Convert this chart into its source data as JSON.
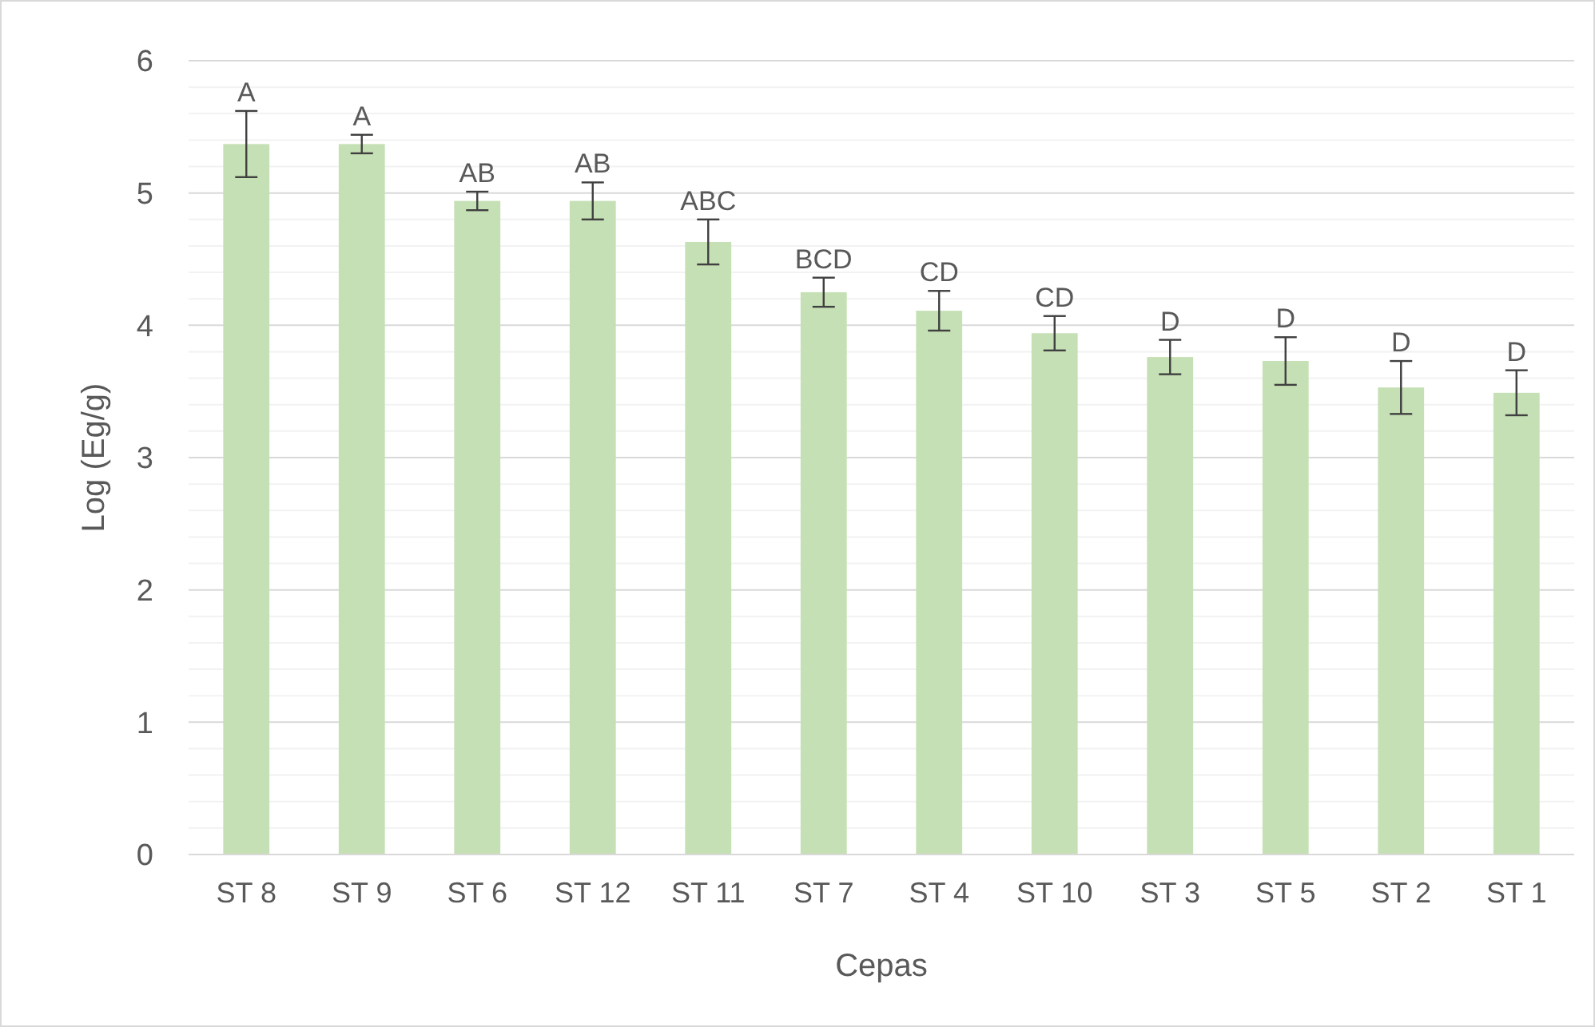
{
  "chart_data": {
    "type": "bar",
    "xlabel": "Cepas",
    "ylabel": "Log (Eg/g)",
    "categories": [
      "ST 8",
      "ST 9",
      "ST 6",
      "ST 12",
      "ST 11",
      "ST 7",
      "ST 4",
      "ST 10",
      "ST 3",
      "ST 5",
      "ST 2",
      "ST 1"
    ],
    "values": [
      5.37,
      5.37,
      4.94,
      4.94,
      4.63,
      4.25,
      4.11,
      3.94,
      3.76,
      3.73,
      3.53,
      3.49
    ],
    "errors": [
      0.25,
      0.07,
      0.07,
      0.14,
      0.17,
      0.11,
      0.15,
      0.13,
      0.13,
      0.18,
      0.2,
      0.17
    ],
    "color": "#c5e0b4",
    "ylim": [
      0,
      6
    ],
    "yticks": [
      0,
      {
        "value": 0.2,
        "label": null
      },
      {
        "value": 0.4,
        "label": null
      },
      {
        "value": 0.6,
        "label": null
      },
      {
        "value": 0.8,
        "label": null
      },
      1,
      {
        "value": 1.2,
        "label": null
      },
      {
        "value": 1.4,
        "label": null
      },
      {
        "value": 1.6,
        "label": null
      },
      {
        "value": 1.8,
        "label": null
      },
      2,
      {
        "value": 2.2,
        "label": null
      },
      {
        "value": 2.4,
        "label": null
      },
      {
        "value": 2.6,
        "label": null
      },
      {
        "value": 2.8,
        "label": null
      },
      3,
      {
        "value": 3.2,
        "label": null
      },
      {
        "value": 3.4,
        "label": null
      },
      {
        "value": 3.6,
        "label": null
      },
      {
        "value": 3.8,
        "label": null
      },
      4,
      {
        "value": 4.2,
        "label": null
      },
      {
        "value": 4.4,
        "label": null
      },
      {
        "value": 4.6,
        "label": null
      },
      {
        "value": 4.8,
        "label": null
      },
      5,
      {
        "value": 5.2,
        "label": null
      },
      {
        "value": 5.4,
        "label": null
      },
      {
        "value": 5.6,
        "label": null
      },
      {
        "value": 5.8,
        "label": null
      },
      6
    ],
    "grid": "y",
    "annotations": [
      "A",
      "A",
      "AB",
      "AB",
      "ABC",
      "BCD",
      "CD",
      "CD",
      "D",
      "D",
      "D",
      "D"
    ]
  }
}
